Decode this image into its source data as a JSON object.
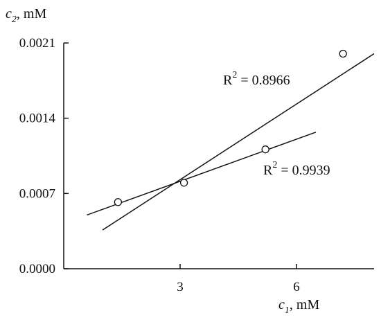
{
  "chart_data": {
    "type": "scatter",
    "title": "",
    "xlabel": {
      "var": "c",
      "sub": "1",
      "unit": ", mM"
    },
    "ylabel": {
      "var": "c",
      "sub": "2",
      "unit": ", mM"
    },
    "xlim": [
      0,
      8.0
    ],
    "ylim": [
      0.0,
      0.0021
    ],
    "xticks": [
      3,
      6
    ],
    "xtick_labels": [
      "3",
      "6"
    ],
    "yticks": [
      0.0,
      0.0007,
      0.0014,
      0.0021
    ],
    "ytick_labels": [
      "0.0000",
      "0.0007",
      "0.0014",
      "0.0021"
    ],
    "points": [
      {
        "x": 1.4,
        "y": 0.00062
      },
      {
        "x": 3.1,
        "y": 0.0008
      },
      {
        "x": 5.2,
        "y": 0.00111
      },
      {
        "x": 7.2,
        "y": 0.002
      }
    ],
    "fits": [
      {
        "x": [
          0.6,
          6.5
        ],
        "y": [
          0.0005,
          0.00127
        ],
        "r2_label": {
          "lhs": "R",
          "sup": "2",
          "rhs": " = 0.9939"
        }
      },
      {
        "x": [
          1.0,
          8.0
        ],
        "y": [
          0.00036,
          0.002
        ],
        "r2_label": {
          "lhs": "R",
          "sup": "2",
          "rhs": " = 0.8966"
        }
      }
    ],
    "grid": false,
    "legend": "none"
  }
}
